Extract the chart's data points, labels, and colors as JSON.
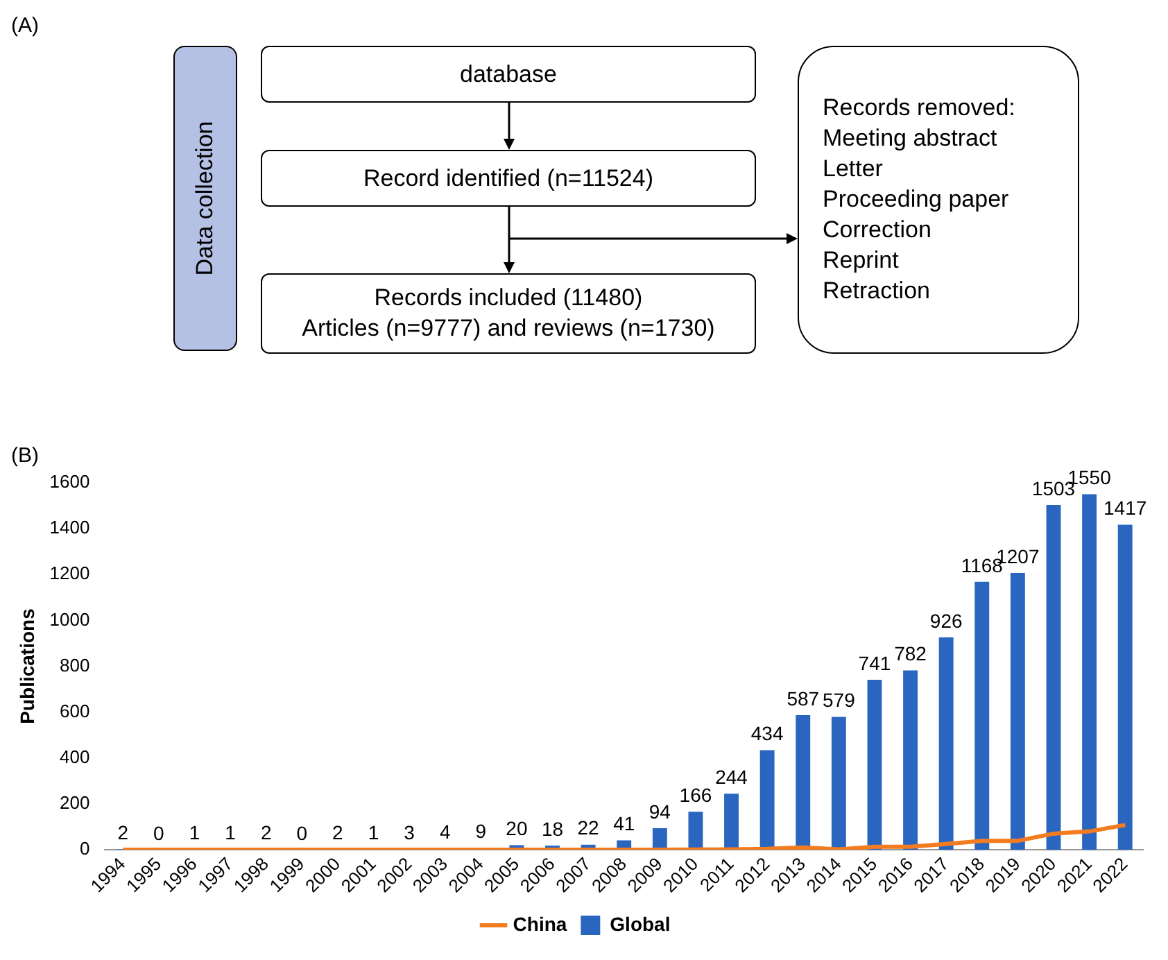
{
  "chart_data": [
    {
      "type": "other",
      "title": "(A)",
      "annotations": [
        "Data collection",
        "database",
        "Record identified (n=11524)",
        "Records included (11480)",
        "Articles (n=9777) and reviews (n=1730)",
        "Records removed:",
        "Meeting abstract",
        "Letter",
        "Proceeding paper",
        "Correction",
        "Reprint",
        "Retraction"
      ]
    },
    {
      "type": "bar",
      "title": "(B)",
      "ylabel": "Publications",
      "categories": [
        "1994",
        "1995",
        "1996",
        "1997",
        "1998",
        "1999",
        "2000",
        "2001",
        "2002",
        "2003",
        "2004",
        "2005",
        "2006",
        "2007",
        "2008",
        "2009",
        "2010",
        "2011",
        "2012",
        "2013",
        "2014",
        "2015",
        "2016",
        "2017",
        "2018",
        "2019",
        "2020",
        "2021",
        "2022"
      ],
      "series": [
        {
          "name": "Global",
          "type": "bar",
          "color": "#2a66c0",
          "values": [
            2,
            0,
            1,
            1,
            2,
            0,
            2,
            1,
            3,
            4,
            9,
            20,
            18,
            22,
            41,
            94,
            166,
            244,
            434,
            587,
            579,
            741,
            782,
            926,
            1168,
            1207,
            1503,
            1550,
            1417
          ],
          "value_labels": [
            "2",
            "0",
            "1",
            "1",
            "2",
            "0",
            "2",
            "1",
            "3",
            "4",
            "9",
            "20",
            "18",
            "22",
            "41",
            "94",
            "166",
            "244",
            "434",
            "587",
            "579",
            "741",
            "782",
            "926",
            "1168",
            "1207",
            "1503",
            "1550",
            "1417"
          ]
        },
        {
          "name": "China",
          "type": "line",
          "color": "#f47c20",
          "values": [
            0,
            0,
            0,
            0,
            0,
            0,
            0,
            0,
            0,
            0,
            0,
            0,
            0,
            0,
            0,
            0,
            1,
            2,
            4,
            10,
            2,
            13,
            13,
            25,
            39,
            39,
            70,
            80,
            108
          ]
        }
      ],
      "ylim": [
        0,
        1600
      ],
      "yticks": [
        0,
        200,
        400,
        600,
        800,
        1000,
        1200,
        1400,
        1600
      ],
      "grid": false,
      "legend": "bottom",
      "marker": "none"
    }
  ]
}
